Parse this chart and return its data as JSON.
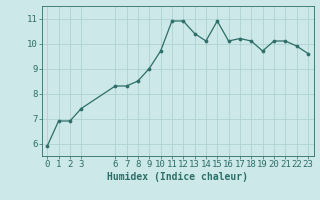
{
  "x": [
    0,
    1,
    2,
    3,
    6,
    7,
    8,
    9,
    10,
    11,
    12,
    13,
    14,
    15,
    16,
    17,
    18,
    19,
    20,
    21,
    22,
    23
  ],
  "y": [
    5.9,
    6.9,
    6.9,
    7.4,
    8.3,
    8.3,
    8.5,
    9.0,
    9.7,
    10.9,
    10.9,
    10.4,
    10.1,
    10.9,
    10.1,
    10.2,
    10.1,
    9.7,
    10.1,
    10.1,
    9.9,
    9.6
  ],
  "bg_color": "#cce8e8",
  "line_color": "#2e6e68",
  "marker_color": "#2e6e68",
  "grid_color": "#aacece",
  "tick_color": "#2e6e68",
  "xlabel": "Humidex (Indice chaleur)",
  "xlabel_color": "#2e6e68",
  "yticks": [
    6,
    7,
    8,
    9,
    10,
    11
  ],
  "xticks": [
    0,
    1,
    2,
    3,
    6,
    7,
    8,
    9,
    10,
    11,
    12,
    13,
    14,
    15,
    16,
    17,
    18,
    19,
    20,
    21,
    22,
    23
  ],
  "ylim": [
    5.5,
    11.5
  ],
  "xlim": [
    -0.5,
    23.5
  ],
  "font_color": "#2e6e68",
  "font_size": 6.5
}
